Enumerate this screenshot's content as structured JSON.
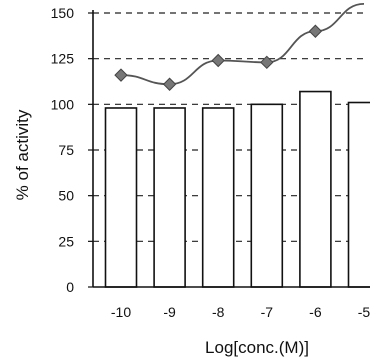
{
  "chart_data": {
    "type": "bar",
    "title": "",
    "xlabel": "Log[conc.(M)]",
    "ylabel": "% of activity",
    "categories": [
      "-10",
      "-9",
      "-8",
      "-7",
      "-6",
      "-5"
    ],
    "ylim": [
      0,
      150
    ],
    "yticks": [
      0,
      25,
      50,
      75,
      100,
      125,
      150
    ],
    "grid": "dashed horizontal",
    "series": [
      {
        "type": "bar",
        "values": [
          98,
          98,
          98,
          100,
          107,
          101
        ],
        "color": "#ffffff",
        "edge_color": "#111111"
      },
      {
        "type": "line",
        "values": [
          116,
          111,
          124,
          123,
          140,
          155
        ],
        "color": "#555555",
        "marker": "diamond"
      }
    ]
  }
}
